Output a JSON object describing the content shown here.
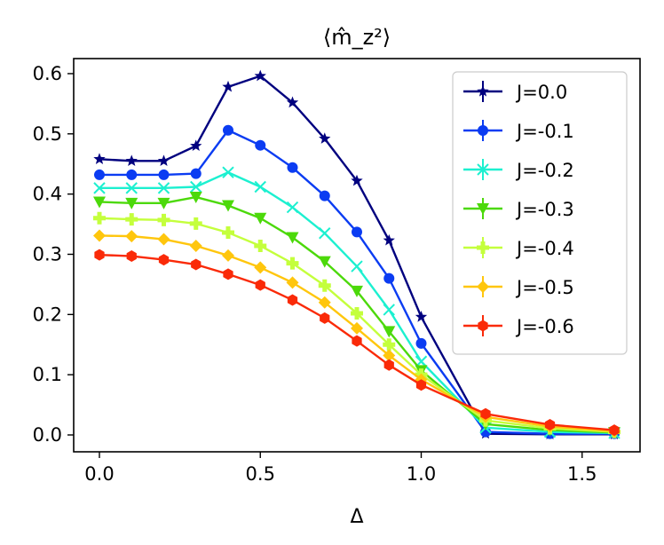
{
  "chart_data": {
    "type": "line",
    "title": "⟨m̂_z²⟩",
    "xlabel": "Δ",
    "ylabel": "",
    "xlim": [
      -0.08,
      1.68
    ],
    "ylim": [
      -0.028,
      0.625
    ],
    "xticks": [
      0.0,
      0.5,
      1.0,
      1.5
    ],
    "xtick_labels": [
      "0.0",
      "0.5",
      "1.0",
      "1.5"
    ],
    "yticks": [
      0.0,
      0.1,
      0.2,
      0.3,
      0.4,
      0.5,
      0.6
    ],
    "ytick_labels": [
      "0.0",
      "0.1",
      "0.2",
      "0.3",
      "0.4",
      "0.5",
      "0.6"
    ],
    "grid": false,
    "legend_position": "top-right",
    "x": [
      0.0,
      0.1,
      0.2,
      0.3,
      0.4,
      0.5,
      0.6,
      0.7,
      0.8,
      0.9,
      1.0,
      1.2,
      1.4,
      1.6
    ],
    "series": [
      {
        "name": "J=0.0",
        "color": "#00007f",
        "marker": "star",
        "values": [
          0.458,
          0.455,
          0.455,
          0.48,
          0.578,
          0.596,
          0.552,
          0.492,
          0.422,
          0.323,
          0.196,
          0.002,
          0.001,
          0.001
        ]
      },
      {
        "name": "J=-0.1",
        "color": "#0b3cf2",
        "marker": "circle",
        "values": [
          0.432,
          0.432,
          0.432,
          0.434,
          0.506,
          0.481,
          0.444,
          0.397,
          0.337,
          0.26,
          0.152,
          0.005,
          0.002,
          0.002
        ]
      },
      {
        "name": "J=-0.2",
        "color": "#1cf0d0",
        "marker": "x",
        "values": [
          0.41,
          0.41,
          0.41,
          0.412,
          0.436,
          0.412,
          0.378,
          0.335,
          0.28,
          0.208,
          0.122,
          0.012,
          0.005,
          0.003
        ]
      },
      {
        "name": "J=-0.3",
        "color": "#4cd90a",
        "marker": "triangle-down",
        "values": [
          0.387,
          0.385,
          0.385,
          0.395,
          0.381,
          0.36,
          0.328,
          0.288,
          0.239,
          0.172,
          0.107,
          0.018,
          0.008,
          0.004
        ]
      },
      {
        "name": "J=-0.4",
        "color": "#c4ff3c",
        "marker": "plus-filled",
        "values": [
          0.36,
          0.358,
          0.357,
          0.351,
          0.336,
          0.314,
          0.285,
          0.248,
          0.202,
          0.15,
          0.1,
          0.024,
          0.011,
          0.005
        ]
      },
      {
        "name": "J=-0.5",
        "color": "#ffc60d",
        "marker": "diamond",
        "values": [
          0.331,
          0.33,
          0.325,
          0.314,
          0.298,
          0.278,
          0.253,
          0.22,
          0.177,
          0.132,
          0.092,
          0.03,
          0.014,
          0.006
        ]
      },
      {
        "name": "J=-0.6",
        "color": "#fa2a08",
        "marker": "hexagon",
        "values": [
          0.299,
          0.297,
          0.291,
          0.283,
          0.267,
          0.249,
          0.224,
          0.194,
          0.156,
          0.116,
          0.083,
          0.035,
          0.017,
          0.008
        ]
      }
    ]
  }
}
